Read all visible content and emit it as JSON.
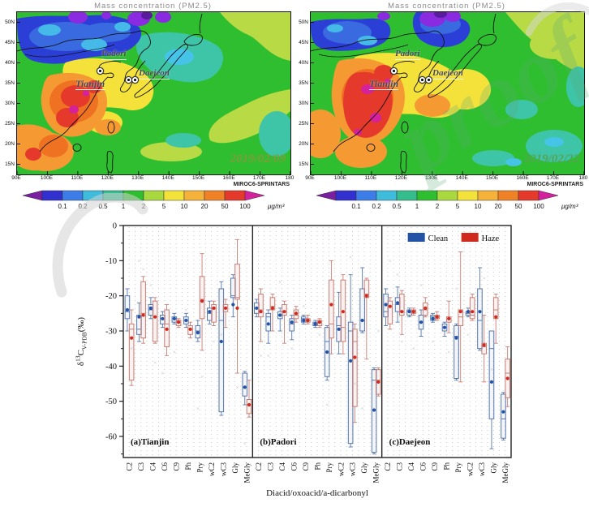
{
  "watermark": {
    "text": "proof"
  },
  "maps": {
    "title": "Mass concentration (PM2.5)",
    "model_label": "MIROC6-SPRINTARS",
    "lat_ticks": [
      "50N",
      "45N",
      "40N",
      "35N",
      "30N",
      "25N",
      "20N",
      "15N"
    ],
    "lon_ticks": [
      "90E",
      "100E",
      "110E",
      "120E",
      "130E",
      "140E",
      "150E",
      "160E",
      "170E",
      "180"
    ],
    "sites": [
      "Tianjin",
      "Padori",
      "Daejeon"
    ],
    "panels": [
      {
        "date": "2019/02/09",
        "date_color": "#7d9c3e"
      },
      {
        "date": "2019/02/22",
        "date_color": "#55a455"
      }
    ],
    "colorbar": {
      "labels": [
        "0.1",
        "0.2",
        "0.5",
        "1",
        "2",
        "5",
        "10",
        "20",
        "50",
        "100"
      ],
      "unit": "μg/m³",
      "tip_left": "#7a1fa2",
      "tip_right": "#d4219c",
      "segment_colors": [
        "#3230cf",
        "#3d7de8",
        "#3fbcdc",
        "#36bd8e",
        "#2fbe2f",
        "#a9d93e",
        "#f2e23a",
        "#f5b23a",
        "#ef8226",
        "#e5392b"
      ]
    }
  },
  "chart_data": {
    "type": "boxplot",
    "xlabel": "Diacid/oxoacid/a-dicarbonyl",
    "ylabel_parts": {
      "delta": "δ",
      "sup": "13",
      "c": "C",
      "sub": "V-PDB",
      "unit": "(‰)"
    },
    "ylim": [
      -66,
      0
    ],
    "yticks": [
      0,
      -10,
      -20,
      -30,
      -40,
      -50,
      -60
    ],
    "grid": "dotted-vertical",
    "legend_position": "top of panel (c)",
    "legend": [
      {
        "label": "Clean",
        "color": "#2353a4"
      },
      {
        "label": "Haze",
        "color": "#d02a1e"
      }
    ],
    "box_stats_order": [
      "low_whisker",
      "q1",
      "median",
      "q3",
      "high_whisker",
      "mean"
    ],
    "categories": [
      "C2",
      "C3",
      "C4",
      "C6",
      "C9",
      "Ph",
      "Pry",
      "wC2",
      "wC3",
      "Gly",
      "MeGly"
    ],
    "panels": [
      {
        "label": "(a)Tianjin",
        "clean": [
          [
            -30,
            -26.5,
            -24.5,
            -20,
            -18,
            -24
          ],
          [
            -33,
            -31,
            -29.5,
            -25.5,
            -22,
            -26
          ],
          [
            -26.5,
            -25.5,
            -24,
            -22.5,
            -20.5,
            -23.5
          ],
          [
            -29,
            -28,
            -26.5,
            -25.5,
            -24.5,
            -26.5
          ],
          [
            -28,
            -27.5,
            -26.5,
            -26,
            -25,
            -26.5
          ],
          [
            -29,
            -28,
            -27,
            -26,
            -25,
            -27
          ],
          [
            -33,
            -32,
            -30,
            -28.5,
            -27,
            -30.5
          ],
          [
            -28,
            -27,
            -25,
            -23.5,
            -21.5,
            -24.5
          ],
          [
            -54,
            -53,
            -27,
            -18,
            -16,
            -33
          ],
          [
            -26,
            -20.5,
            -20,
            -15,
            -14,
            -22.5
          ],
          [
            -51,
            -48.5,
            -46,
            -42,
            -41.5,
            -46
          ]
        ],
        "haze": [
          [
            -45.5,
            -44,
            -29.5,
            -28,
            -24,
            -32
          ],
          [
            -33.5,
            -32,
            -25,
            -16,
            -14.5,
            -25.5
          ],
          [
            -33.5,
            -33,
            -26,
            -21.5,
            -20.5,
            -26
          ],
          [
            -37,
            -34.5,
            -28,
            -24,
            -22.5,
            -29.5
          ],
          [
            -29,
            -28.5,
            -27.5,
            -27,
            -26.5,
            -27.5
          ],
          [
            -32,
            -31,
            -29.5,
            -28.5,
            -27.5,
            -29.5
          ],
          [
            -35.5,
            -26.5,
            -21,
            -14.5,
            -8,
            -21.5
          ],
          [
            -28.5,
            -27.5,
            -23.5,
            -22.5,
            -21.5,
            -23.5
          ],
          [
            -29,
            -24.5,
            -23.5,
            -22.5,
            -21,
            -23.5
          ],
          [
            -42,
            -21,
            -20.5,
            -11,
            -4,
            -23.5
          ],
          [
            -54.5,
            -53.5,
            -51,
            -49.5,
            -44,
            -51
          ]
        ],
        "outliers": [
          {
            "c": 1,
            "v": -10,
            "s": 0
          },
          {
            "c": 1,
            "v": -12.5,
            "s": 1
          },
          {
            "c": 0,
            "v": -35,
            "s": 1
          },
          {
            "c": 2,
            "v": -39,
            "s": 1
          },
          {
            "c": 3,
            "v": -42,
            "s": 0
          },
          {
            "c": 4,
            "v": -36,
            "s": 0
          },
          {
            "c": 5,
            "v": -24,
            "s": 0
          },
          {
            "c": 6,
            "v": -43,
            "s": 1
          },
          {
            "c": 7,
            "v": -33,
            "s": 1
          },
          {
            "c": 8,
            "v": -31,
            "s": 0
          },
          {
            "c": 9,
            "v": -46,
            "s": 1
          },
          {
            "c": 10,
            "v": -62,
            "s": 0
          },
          {
            "c": 2,
            "v": -17,
            "s": 0
          },
          {
            "c": 6,
            "v": -52,
            "s": 0
          }
        ]
      },
      {
        "label": "(b)Padori",
        "clean": [
          [
            -26,
            -25,
            -23.5,
            -22,
            -21,
            -23.5
          ],
          [
            -33.5,
            -30,
            -26,
            -25,
            -24,
            -28
          ],
          [
            -30,
            -26.5,
            -25.5,
            -24.5,
            -23.5,
            -25.5
          ],
          [
            -32.5,
            -30,
            -28,
            -26.5,
            -25.5,
            -27.5
          ],
          [
            -28,
            -27.5,
            -26.5,
            -26,
            -25.5,
            -27
          ],
          [
            -29,
            -28.5,
            -28,
            -27.5,
            -27,
            -28
          ],
          [
            -44,
            -43,
            -33,
            -29,
            -28.5,
            -36
          ],
          [
            -36.5,
            -33,
            -28.5,
            -26,
            -19,
            -29.5
          ],
          [
            -63,
            -62,
            -30,
            -27.5,
            -14,
            -38.5
          ],
          [
            -30.5,
            -30,
            -27,
            -18,
            -12,
            -27
          ],
          [
            -65,
            -64.5,
            -44,
            -41,
            -40.5,
            -52.5
          ]
        ],
        "haze": [
          [
            -33,
            -26,
            -24,
            -19.5,
            -18,
            -24.5
          ],
          [
            -30,
            -24,
            -23,
            -20.5,
            -19.5,
            -23.5
          ],
          [
            -33.5,
            -25.5,
            -24.5,
            -22.5,
            -21.5,
            -24.5
          ],
          [
            -27.5,
            -26.5,
            -25.5,
            -24,
            -23,
            -25
          ],
          [
            -28,
            -27.5,
            -27,
            -26.5,
            -25.5,
            -27
          ],
          [
            -29,
            -28.5,
            -27.5,
            -27,
            -26.5,
            -27.5
          ],
          [
            -36.5,
            -32,
            -28,
            -15.5,
            -10,
            -22.5
          ],
          [
            -36.5,
            -33,
            -29,
            -15.5,
            -14,
            -24.5
          ],
          [
            -56,
            -51.5,
            -33,
            -29.5,
            -28,
            -37.5
          ],
          [
            -38,
            -20.5,
            -19.5,
            -15.5,
            -15,
            -20
          ],
          [
            -48.5,
            -48,
            -44,
            -41,
            -40.5,
            -44.5
          ]
        ],
        "outliers": [
          {
            "c": 0,
            "v": -37,
            "s": 1
          },
          {
            "c": 2,
            "v": -16,
            "s": 0
          },
          {
            "c": 3,
            "v": -35,
            "s": 0
          },
          {
            "c": 4,
            "v": -23,
            "s": 0
          },
          {
            "c": 6,
            "v": -51,
            "s": 0
          },
          {
            "c": 7,
            "v": -20,
            "s": 0
          },
          {
            "c": 8,
            "v": -9,
            "s": 0
          },
          {
            "c": 8,
            "v": -45,
            "s": 1
          },
          {
            "c": 9,
            "v": -52,
            "s": 0
          },
          {
            "c": 10,
            "v": -30,
            "s": 1
          },
          {
            "c": 1,
            "v": -37,
            "s": 0
          },
          {
            "c": 5,
            "v": -31,
            "s": 1
          }
        ]
      },
      {
        "label": "(c)Daejeon",
        "clean": [
          [
            -28.5,
            -26,
            -24.5,
            -19.5,
            -18,
            -22.5
          ],
          [
            -27.5,
            -24.5,
            -22.5,
            -20.5,
            -17.5,
            -22
          ],
          [
            -26,
            -25.5,
            -24.5,
            -24,
            -23.5,
            -24.5
          ],
          [
            -31.5,
            -29.5,
            -27.5,
            -25.5,
            -24,
            -27.5
          ],
          [
            -27.5,
            -27,
            -26,
            -25.5,
            -25,
            -26.5
          ],
          [
            -31.5,
            -30,
            -29,
            -28,
            -27.5,
            -29
          ],
          [
            -44,
            -43.5,
            -31.5,
            -28.5,
            -28,
            -32
          ],
          [
            -26,
            -25.5,
            -25,
            -24.5,
            -23.5,
            -24.5
          ],
          [
            -35.5,
            -35,
            -27,
            -18,
            -12,
            -24.5
          ],
          [
            -63.5,
            -55,
            -35,
            -30,
            -30,
            -44.5
          ],
          [
            -61,
            -60.5,
            -55,
            -48,
            -47.5,
            -53
          ]
        ],
        "haze": [
          [
            -29.5,
            -28,
            -23,
            -21.5,
            -20.5,
            -23
          ],
          [
            -31,
            -25.5,
            -24.5,
            -19.5,
            -18.5,
            -24.5
          ],
          [
            -25.5,
            -25,
            -24.5,
            -24,
            -23.5,
            -24.5
          ],
          [
            -26,
            -25.5,
            -24,
            -22,
            -20.5,
            -23.5
          ],
          [
            -27,
            -26.5,
            -26,
            -25.5,
            -24.5,
            -26
          ],
          [
            -30.5,
            -27.5,
            -26.5,
            -26,
            -21.5,
            -26.5
          ],
          [
            -44.5,
            -28.5,
            -26,
            -24,
            -7.5,
            -24.5
          ],
          [
            -27,
            -26.5,
            -25.5,
            -20.5,
            -19.5,
            -24.5
          ],
          [
            -44.5,
            -36.5,
            -34.5,
            -33.5,
            -25.5,
            -34
          ],
          [
            -33.5,
            -26.5,
            -24,
            -20.5,
            -19.5,
            -26
          ],
          [
            -51.5,
            -49,
            -42,
            -38,
            -34.5,
            -43.5
          ]
        ],
        "outliers": [
          {
            "c": 0,
            "v": -10,
            "s": 1
          },
          {
            "c": 1,
            "v": -14,
            "s": 0
          },
          {
            "c": 2,
            "v": -35,
            "s": 1
          },
          {
            "c": 3,
            "v": -17,
            "s": 0
          },
          {
            "c": 4,
            "v": -33,
            "s": 0
          },
          {
            "c": 5,
            "v": -36,
            "s": 1
          },
          {
            "c": 6,
            "v": -18,
            "s": 0
          },
          {
            "c": 7,
            "v": -31,
            "s": 0
          },
          {
            "c": 8,
            "v": -15,
            "s": 1
          },
          {
            "c": 9,
            "v": -41,
            "s": 0
          },
          {
            "c": 10,
            "v": -66,
            "s": 1
          },
          {
            "c": 1,
            "v": -33,
            "s": 1
          }
        ]
      }
    ]
  }
}
